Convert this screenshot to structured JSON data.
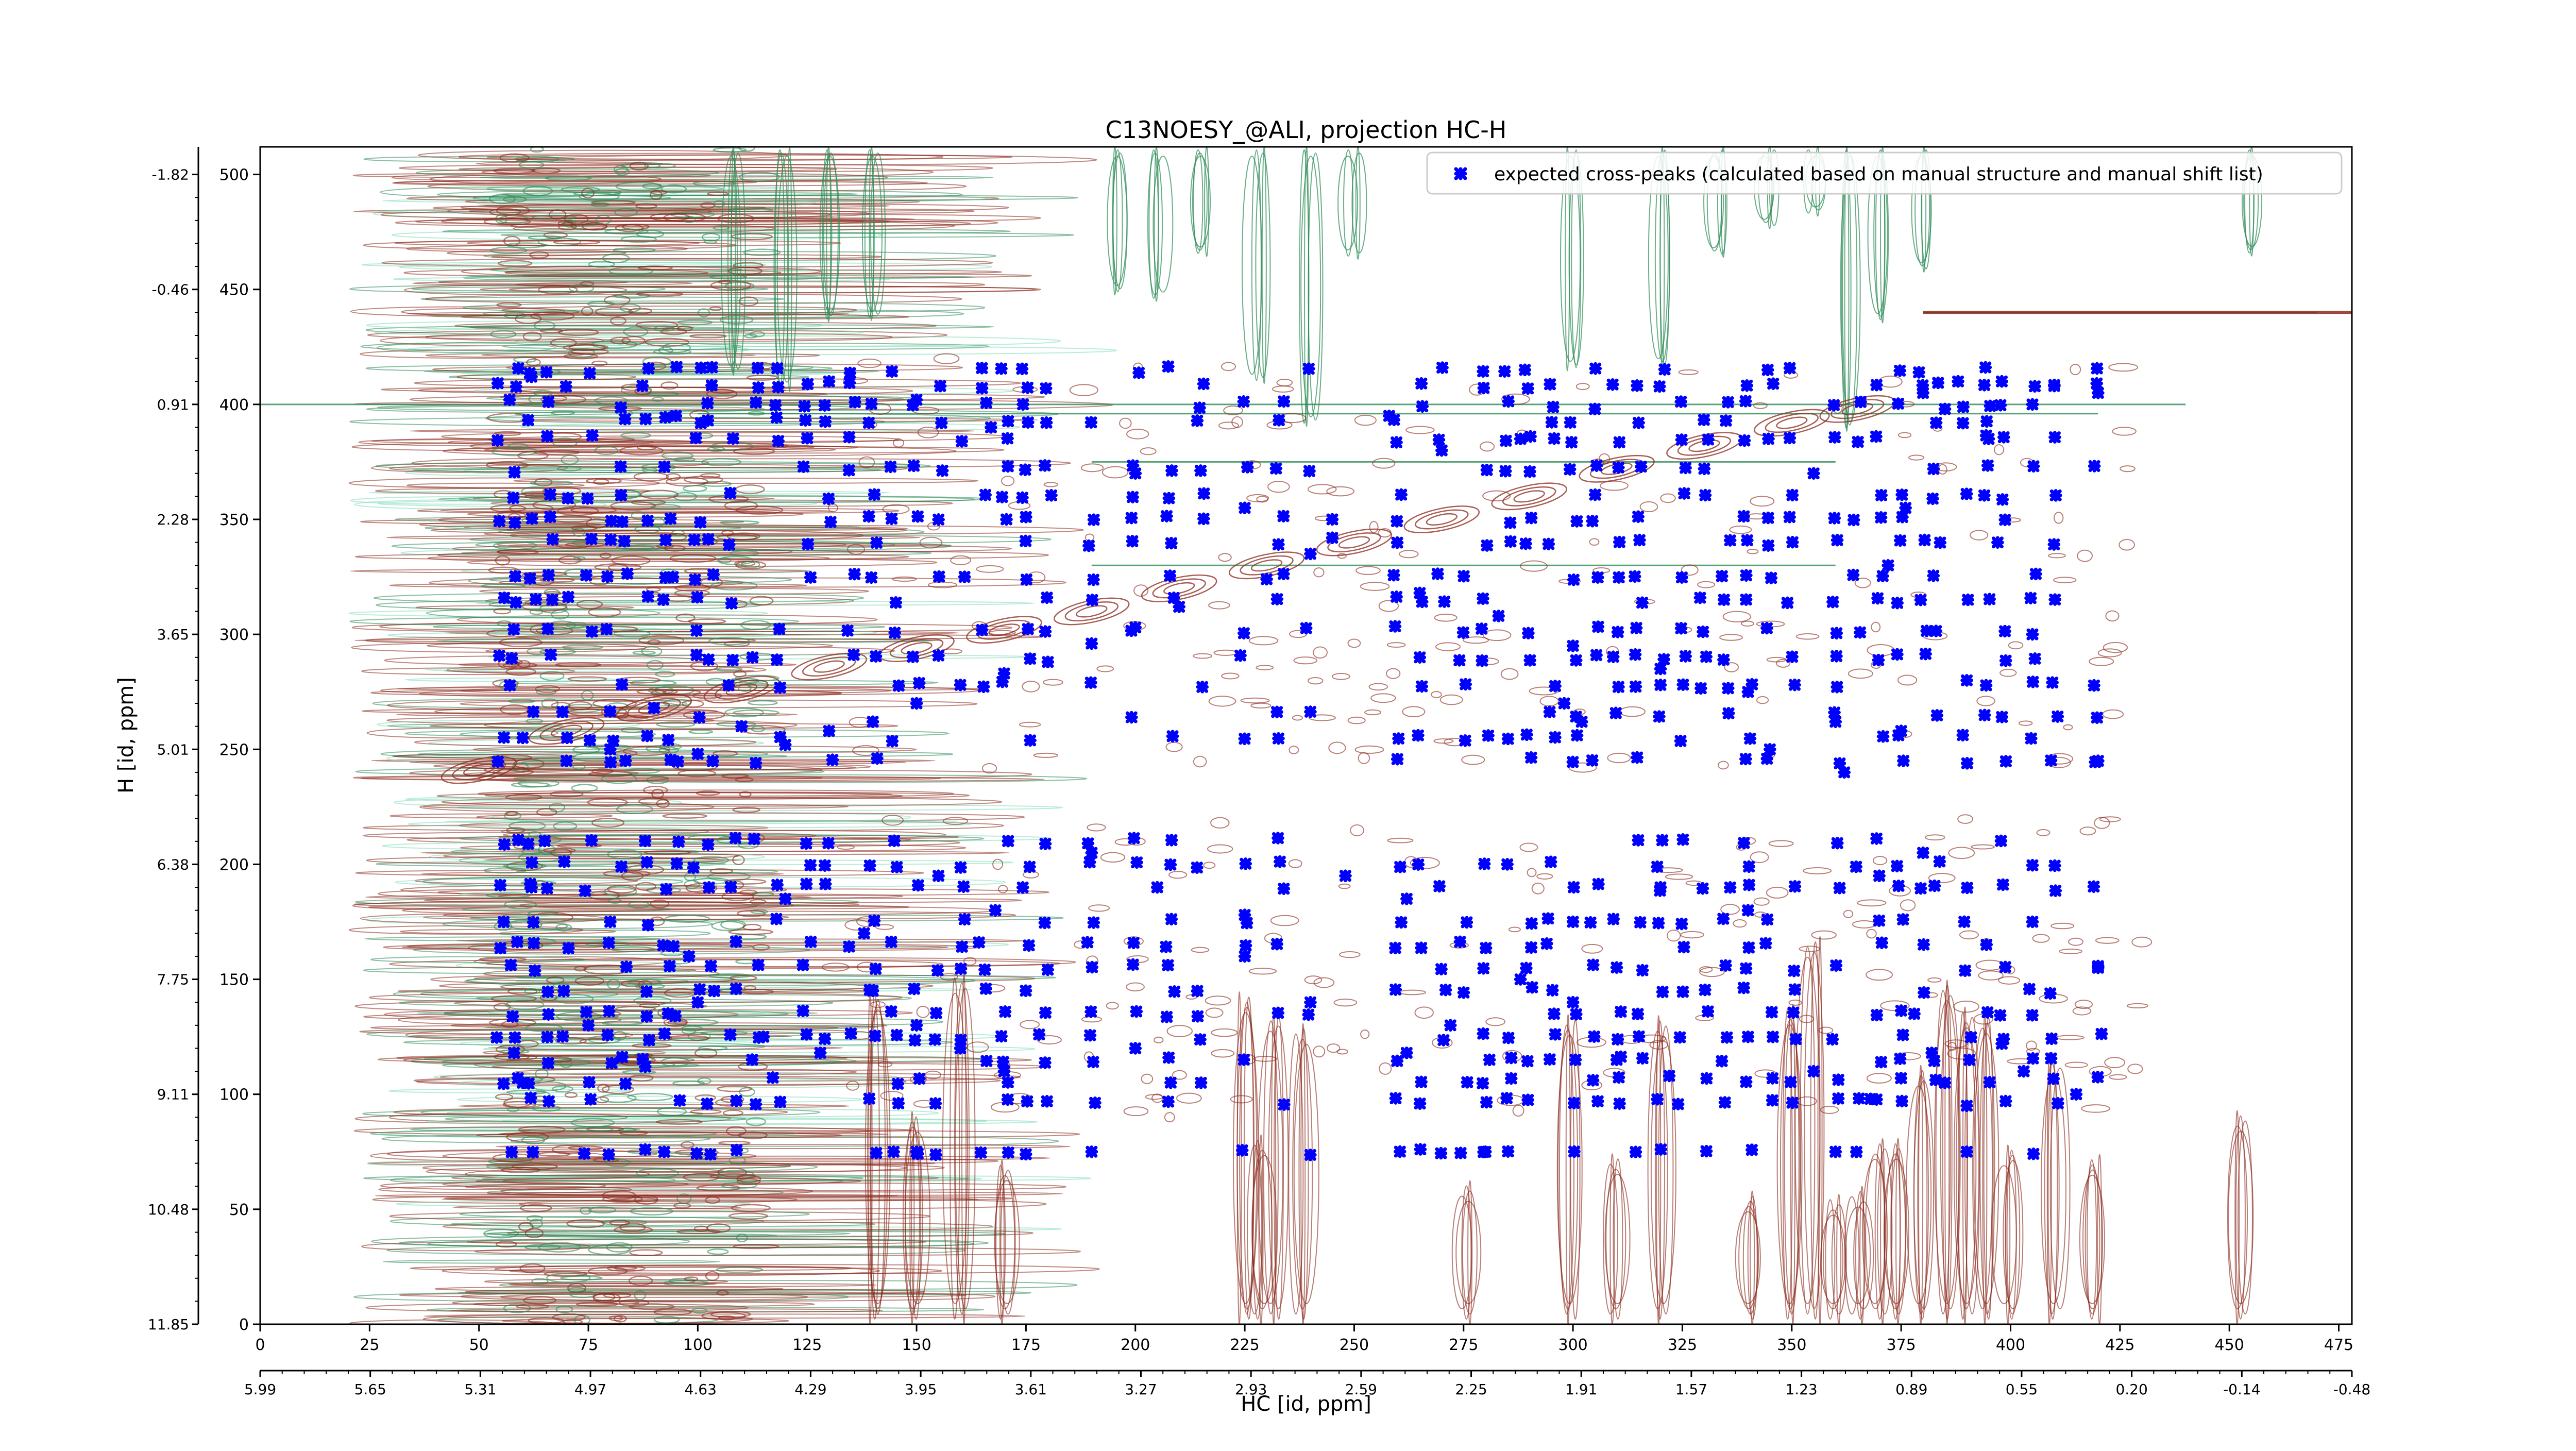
{
  "chart_data": {
    "type": "scatter",
    "title": "C13NOESY_@ALI, projection HC-H",
    "xlabel": "HC [id, ppm]",
    "ylabel": "H [id, ppm]",
    "xlim": [
      0,
      478
    ],
    "ylim": [
      0,
      512
    ],
    "x_ticks": [
      0,
      25,
      50,
      75,
      100,
      125,
      150,
      175,
      200,
      225,
      250,
      275,
      300,
      325,
      350,
      375,
      400,
      425,
      450,
      475
    ],
    "y_ticks": [
      0,
      50,
      100,
      150,
      200,
      250,
      300,
      350,
      400,
      450,
      500
    ],
    "x_ppm_ticks": [
      "5.99",
      "5.65",
      "5.31",
      "4.97",
      "4.63",
      "4.29",
      "3.95",
      "3.61",
      "3.27",
      "2.93",
      "2.59",
      "2.25",
      "1.91",
      "1.57",
      "1.23",
      "0.89",
      "0.55",
      "0.20",
      "-0.14",
      "-0.48"
    ],
    "y_ppm_ticks": [
      "11.85",
      "10.48",
      "9.11",
      "7.75",
      "6.38",
      "5.01",
      "3.65",
      "2.28",
      "0.91",
      "-0.46",
      "-1.82"
    ],
    "legend": {
      "position": "top-right",
      "entries": [
        "expected cross-peaks (calculated based on manual structure and manual shift list)"
      ]
    },
    "grid": false,
    "colors": {
      "cross_peak_marker": "#0000ff",
      "positive_contour": "#8b2a1c",
      "negative_contour": "#2e8b57",
      "negative_contour_light": "#7fdcb8"
    },
    "diagonal_peaks": [
      [
        50,
        241
      ],
      [
        70,
        258
      ],
      [
        90,
        268
      ],
      [
        110,
        276
      ],
      [
        130,
        286
      ],
      [
        150,
        294
      ],
      [
        170,
        302
      ],
      [
        190,
        310
      ],
      [
        210,
        320
      ],
      [
        230,
        330
      ],
      [
        250,
        340
      ],
      [
        270,
        350
      ],
      [
        290,
        360
      ],
      [
        310,
        372
      ],
      [
        330,
        382
      ],
      [
        350,
        392
      ],
      [
        365,
        398
      ]
    ],
    "series": [
      {
        "name": "expected cross-peaks (calculated based on manual structure and manual shift list)",
        "columns_x": [
          55,
          58,
          62,
          66,
          70,
          75,
          80,
          83,
          88,
          93,
          95,
          100,
          103,
          108,
          113,
          118,
          125,
          130,
          135,
          140,
          145,
          150,
          155,
          160,
          165,
          170,
          175,
          180,
          190,
          200,
          208,
          215,
          225,
          233,
          240,
          260,
          265,
          270,
          275,
          280,
          285,
          290,
          295,
          300,
          305,
          310,
          315,
          320,
          325,
          330,
          335,
          340,
          345,
          350,
          360,
          365,
          370,
          375,
          380,
          383,
          390,
          395,
          398,
          405,
          410,
          420
        ],
        "rows_y": [
          415,
          408,
          400,
          393,
          385,
          372,
          360,
          350,
          340,
          325,
          315,
          302,
          290,
          278,
          265,
          255,
          245,
          210,
          200,
          190,
          175,
          165,
          155,
          145,
          135,
          125,
          115,
          106,
          97,
          75
        ],
        "points": [
          [
            380,
            405
          ],
          [
            383,
            392
          ],
          [
            385,
            398
          ],
          [
            388,
            410
          ],
          [
            376,
            355
          ],
          [
            372,
            330
          ],
          [
            298,
            270
          ],
          [
            302,
            262
          ],
          [
            265,
            290
          ],
          [
            320,
            278
          ],
          [
            345,
            250
          ],
          [
            362,
            240
          ],
          [
            395,
            385
          ],
          [
            405,
            400
          ],
          [
            398,
            410
          ],
          [
            410,
            408
          ],
          [
            420,
            405
          ],
          [
            355,
            370
          ],
          [
            330,
            372
          ],
          [
            315,
            392
          ],
          [
            305,
            398
          ],
          [
            288,
            385
          ],
          [
            270,
            380
          ],
          [
            258,
            395
          ],
          [
            245,
            350
          ],
          [
            240,
            335
          ],
          [
            230,
            324
          ],
          [
            210,
            312
          ],
          [
            200,
            303
          ],
          [
            190,
            296
          ],
          [
            180,
            288
          ],
          [
            170,
            283
          ],
          [
            160,
            278
          ],
          [
            150,
            270
          ],
          [
            140,
            262
          ],
          [
            130,
            258
          ],
          [
            120,
            252
          ],
          [
            110,
            260
          ],
          [
            100,
            248
          ],
          [
            90,
            268
          ],
          [
            80,
            250
          ],
          [
            70,
            245
          ],
          [
            60,
            255
          ],
          [
            57,
            402
          ],
          [
            62,
            412
          ],
          [
            95,
            395
          ],
          [
            130,
            410
          ],
          [
            150,
            402
          ],
          [
            167,
            390
          ],
          [
            200,
            370
          ],
          [
            225,
            355
          ],
          [
            245,
            342
          ],
          [
            265,
            318
          ],
          [
            283,
            308
          ],
          [
            300,
            295
          ],
          [
            320,
            285
          ],
          [
            340,
            275
          ],
          [
            360,
            262
          ],
          [
            375,
            258
          ],
          [
            390,
            280
          ],
          [
            405,
            300
          ],
          [
            420,
            245
          ],
          [
            58,
            118
          ],
          [
            60,
            105
          ],
          [
            75,
            130
          ],
          [
            88,
            112
          ],
          [
            100,
            140
          ],
          [
            115,
            125
          ],
          [
            128,
            118
          ],
          [
            140,
            145
          ],
          [
            150,
            130
          ],
          [
            160,
            120
          ],
          [
            170,
            110
          ],
          [
            178,
            126
          ],
          [
            200,
            120
          ],
          [
            215,
            105
          ],
          [
            225,
            160
          ],
          [
            240,
            140
          ],
          [
            262,
            118
          ],
          [
            272,
            130
          ],
          [
            288,
            150
          ],
          [
            300,
            140
          ],
          [
            310,
            115
          ],
          [
            322,
            108
          ],
          [
            340,
            125
          ],
          [
            355,
            110
          ],
          [
            368,
            98
          ],
          [
            378,
            135
          ],
          [
            382,
            118
          ],
          [
            385,
            105
          ],
          [
            390,
            95
          ],
          [
            398,
            122
          ],
          [
            403,
            110
          ],
          [
            415,
            100
          ],
          [
            420,
            155
          ],
          [
            405,
            175
          ],
          [
            380,
            205
          ],
          [
            370,
            195
          ],
          [
            340,
            180
          ],
          [
            320,
            190
          ],
          [
            300,
            175
          ],
          [
            285,
            200
          ],
          [
            262,
            185
          ],
          [
            248,
            195
          ],
          [
            225,
            178
          ],
          [
            205,
            190
          ],
          [
            190,
            205
          ],
          [
            168,
            180
          ],
          [
            155,
            195
          ],
          [
            138,
            170
          ],
          [
            120,
            185
          ],
          [
            98,
            160
          ],
          [
            80,
            175
          ],
          [
            62,
            190
          ],
          [
            150,
            75
          ],
          [
            190,
            75
          ],
          [
            280,
            75
          ],
          [
            360,
            75
          ],
          [
            390,
            75
          ]
        ]
      }
    ]
  }
}
